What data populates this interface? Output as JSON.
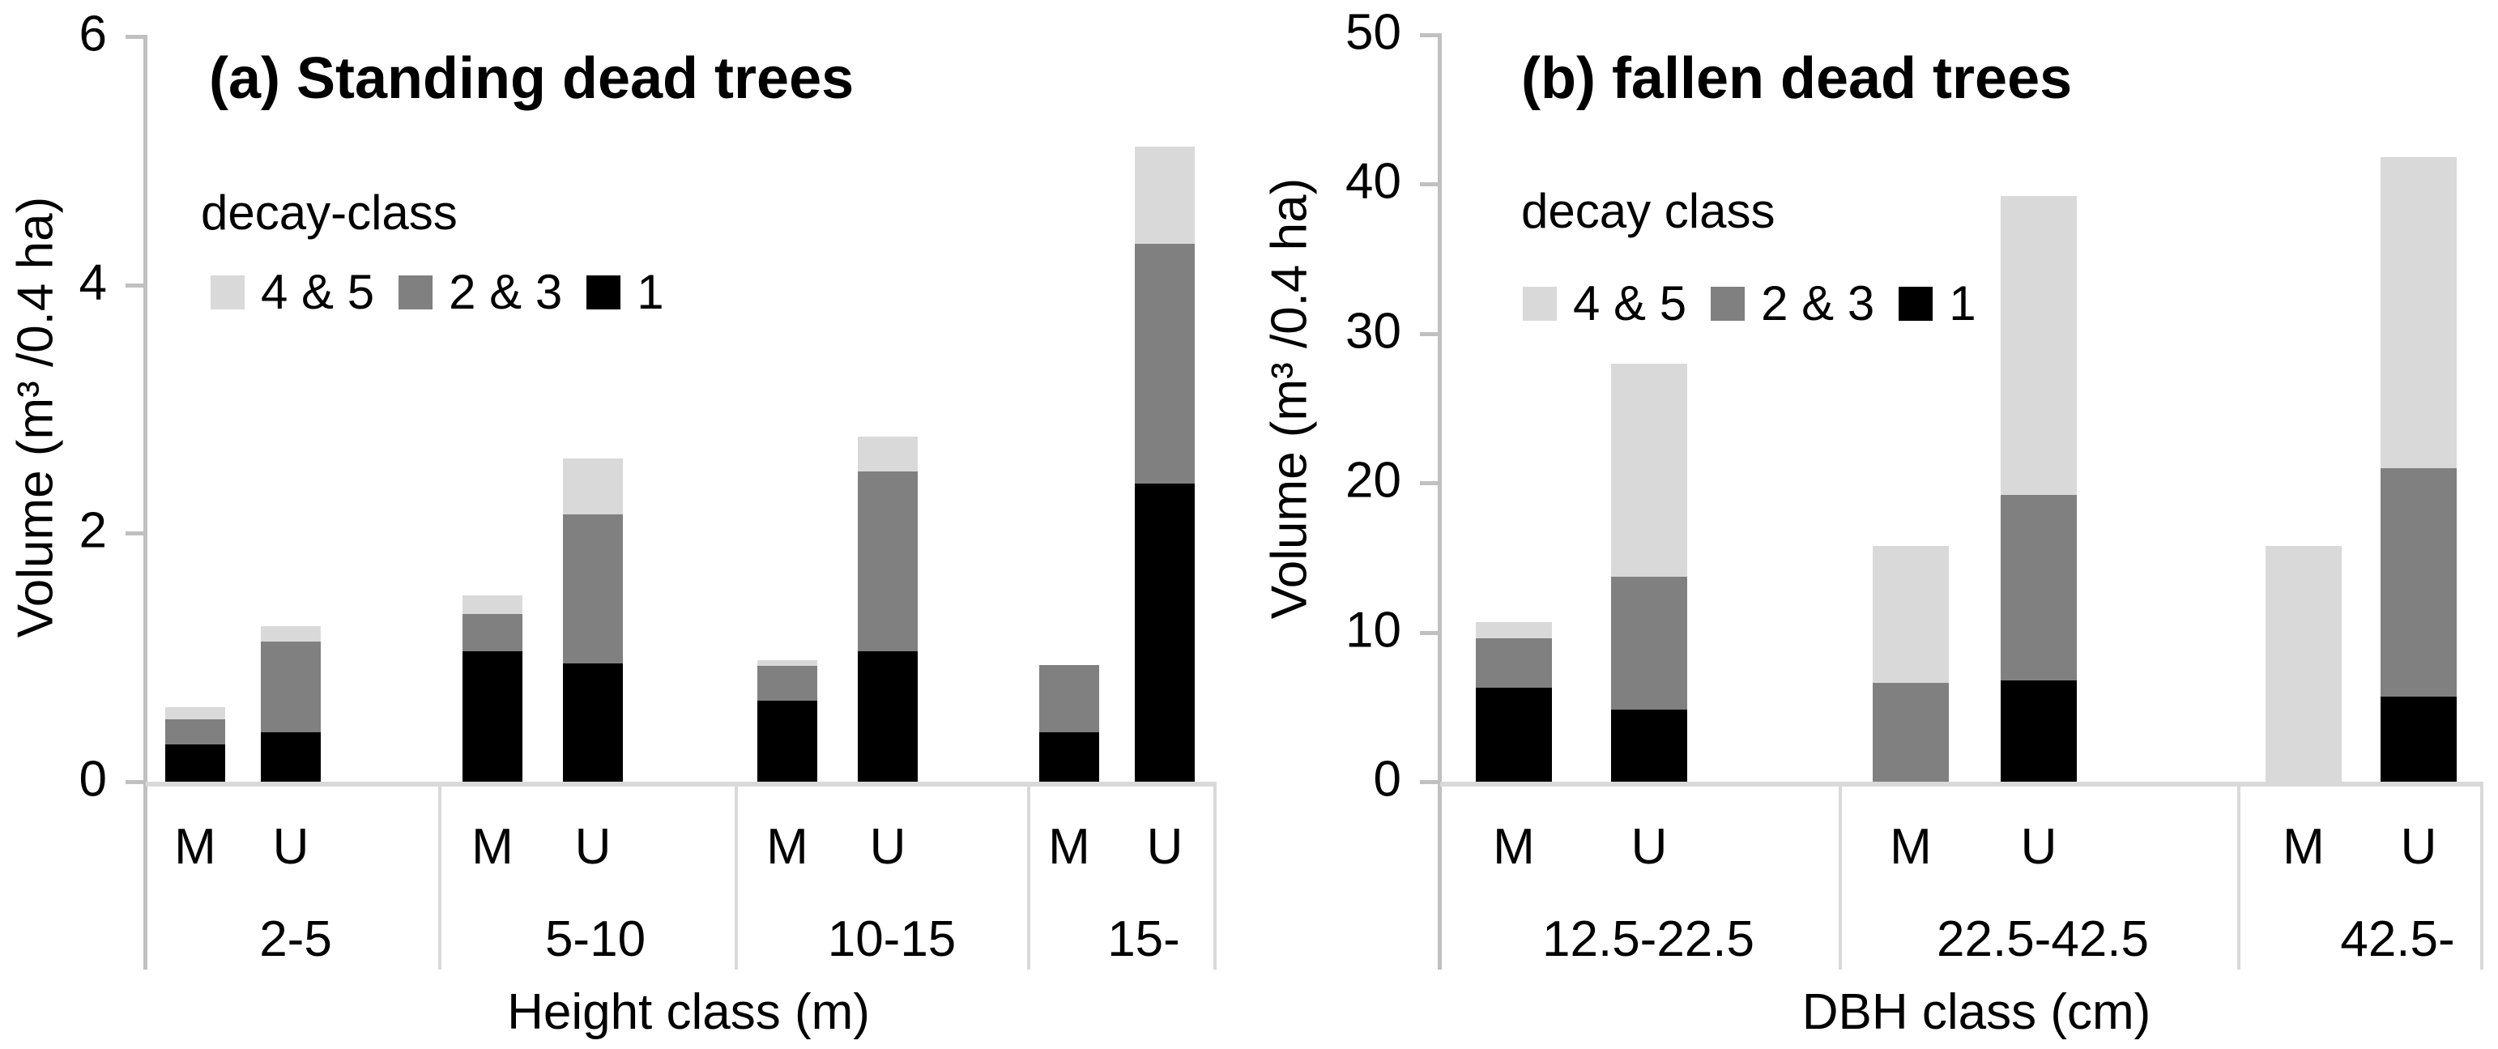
{
  "chart_data": [
    {
      "id": "a",
      "type": "bar",
      "subtype": "stacked-grouped",
      "title": "(a) Standing dead trees",
      "legend_title": "decay-class",
      "legend_position": "inside-top-left",
      "legend_items": [
        {
          "label": "4 & 5",
          "color": "#d9d9d9"
        },
        {
          "label": "2 & 3",
          "color": "#808080"
        },
        {
          "label": "1",
          "color": "#000000"
        }
      ],
      "ylabel": "Volume (m³ /0.4 ha)",
      "xlabel": "Height class (m)",
      "ylim": [
        0,
        6
      ],
      "yticks": [
        0,
        2,
        4,
        6
      ],
      "grid": false,
      "axis_color": "#c0c0c0",
      "baseline_color": "#d9d9d9",
      "categories": [
        "2-5",
        "5-10",
        "10-15",
        "15-"
      ],
      "subcategories": [
        "M",
        "U"
      ],
      "stack_order_bottom_to_top": [
        "1",
        "2 & 3",
        "4 & 5"
      ],
      "series_colors": {
        "1": "#000000",
        "2 & 3": "#808080",
        "4 & 5": "#d9d9d9"
      },
      "values": {
        "M": {
          "1": [
            0.3,
            1.05,
            0.65,
            0.4
          ],
          "2 & 3": [
            0.2,
            0.3,
            0.28,
            0.54
          ],
          "4 & 5": [
            0.1,
            0.15,
            0.05,
            0.0
          ]
        },
        "U": {
          "1": [
            0.4,
            0.95,
            1.05,
            2.4
          ],
          "2 & 3": [
            0.73,
            1.2,
            1.45,
            1.93
          ],
          "4 & 5": [
            0.12,
            0.45,
            0.28,
            0.78
          ]
        }
      }
    },
    {
      "id": "b",
      "type": "bar",
      "subtype": "stacked-grouped",
      "title": "(b) fallen dead trees",
      "legend_title": "decay class",
      "legend_position": "inside-top-left",
      "legend_items": [
        {
          "label": "4 & 5",
          "color": "#d9d9d9"
        },
        {
          "label": "2 & 3",
          "color": "#808080"
        },
        {
          "label": "1",
          "color": "#000000"
        }
      ],
      "ylabel": "Volume (m³ /0.4 ha)",
      "xlabel": "DBH class (cm)",
      "ylim": [
        0,
        50
      ],
      "yticks": [
        0,
        10,
        20,
        30,
        40,
        50
      ],
      "grid": false,
      "axis_color": "#c0c0c0",
      "baseline_color": "#d9d9d9",
      "categories": [
        "12.5-22.5",
        "22.5-42.5",
        "42.5-"
      ],
      "subcategories": [
        "M",
        "U"
      ],
      "stack_order_bottom_to_top": [
        "1",
        "2 & 3",
        "4 & 5"
      ],
      "series_colors": {
        "1": "#000000",
        "2 & 3": "#808080",
        "4 & 5": "#d9d9d9"
      },
      "values": {
        "M": {
          "1": [
            6.3,
            0.0,
            0.0
          ],
          "2 & 3": [
            3.3,
            6.6,
            0.0
          ],
          "4 & 5": [
            1.1,
            9.2,
            15.8
          ]
        },
        "U": {
          "1": [
            4.8,
            6.8,
            5.7
          ],
          "2 & 3": [
            8.9,
            12.4,
            15.3
          ],
          "4 & 5": [
            14.3,
            20.0,
            20.8
          ]
        }
      }
    }
  ]
}
